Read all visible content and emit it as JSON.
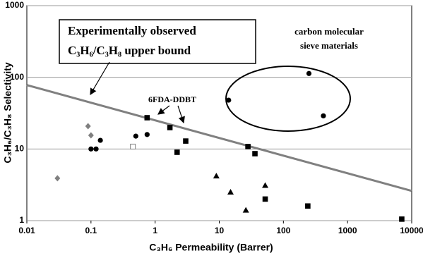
{
  "chart_data": {
    "type": "scatter",
    "x_label": "C₃H₆ Permeability (Barrer)",
    "y_label": "C₃H₆/C₃H₈ Selectivity",
    "log_x": true,
    "log_y": true,
    "grid": true,
    "xlim": [
      0.01,
      10000
    ],
    "xticks": [
      0.01,
      0.1,
      1,
      10,
      100,
      1000,
      10000
    ],
    "ylim": [
      1,
      1000
    ],
    "yticks": [
      1,
      10,
      100,
      1000
    ],
    "upper_bound": {
      "color": "#808080",
      "x": [
        0.01,
        10000
      ],
      "values": [
        78,
        2.6
      ]
    },
    "series": [
      {
        "marker": "diamond",
        "color": "#808080",
        "x": [
          0.03,
          0.09,
          0.1
        ],
        "values": [
          3.9,
          20.8,
          15.5
        ]
      },
      {
        "marker": "circle",
        "color": "#000000",
        "x": [
          0.1,
          0.12,
          0.14,
          0.5,
          0.75,
          14,
          250,
          420
        ],
        "values": [
          10,
          10,
          13.2,
          15.1,
          15.9,
          48,
          113,
          29
        ]
      },
      {
        "marker": "open-square",
        "color": "#808080",
        "x": [
          0.45
        ],
        "values": [
          10.8
        ]
      },
      {
        "marker": "square",
        "color": "#000000",
        "x": [
          0.75,
          1.7,
          2.2,
          3,
          28,
          36,
          52,
          240,
          7000
        ],
        "values": [
          27.3,
          19.9,
          9,
          12.9,
          10.8,
          8.6,
          2,
          1.6,
          1.05
        ]
      },
      {
        "marker": "triangle",
        "color": "#000000",
        "x": [
          9,
          15,
          26,
          52
        ],
        "values": [
          4.2,
          2.5,
          1.4,
          3.1
        ]
      }
    ],
    "annotations": {
      "bound_line_1": "Experimentally observed",
      "bound_line_2": "C₃H₆/C₃H₈ upper bound",
      "cms_line_1": "carbon molecular",
      "cms_line_2": "sieve materials",
      "polymer": "6FDA-DDBT"
    }
  }
}
